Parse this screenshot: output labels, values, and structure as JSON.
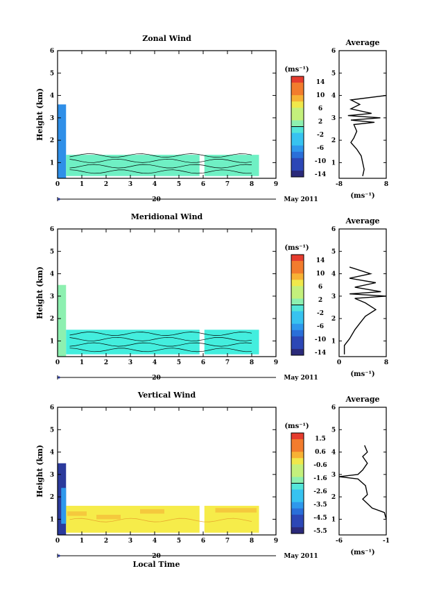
{
  "figure": {
    "date_label": "May 2011",
    "day_label": "20",
    "xlabel": "Local Time",
    "ylabel": "Height (km)",
    "colorbar_unit": "(ms⁻¹)",
    "profile_title": "Average",
    "profile_unit": "(ms⁻¹)"
  },
  "chart_data": [
    {
      "type": "heatmap",
      "title": "Zonal Wind",
      "xlabel": "",
      "ylabel": "Height (km)",
      "xlim": [
        0,
        9
      ],
      "ylim": [
        0.3,
        6
      ],
      "xticks": [
        "0",
        "1",
        "2",
        "3",
        "4",
        "5",
        "6",
        "7",
        "8",
        "9"
      ],
      "yticks": [
        "1",
        "2",
        "3",
        "4",
        "5",
        "6"
      ],
      "colorbar": {
        "ticks": [
          "14",
          "10",
          "6",
          "2",
          "-2",
          "-6",
          "-10",
          "-14"
        ],
        "range": [
          -16,
          16
        ]
      },
      "regions": [
        {
          "x": [
            0.0,
            0.35
          ],
          "y": [
            0.3,
            3.6
          ],
          "value": -6
        },
        {
          "x": [
            0.35,
            8.3
          ],
          "y": [
            0.4,
            1.35
          ],
          "value": 0
        }
      ],
      "profile": {
        "xlim": [
          -8,
          8
        ],
        "xticks": [
          "-8",
          "8"
        ],
        "yticks": [
          "1",
          "2",
          "3",
          "4",
          "5",
          "6"
        ],
        "heights": [
          0.4,
          0.7,
          1.0,
          1.3,
          1.6,
          1.9,
          2.1,
          2.4,
          2.7,
          2.8,
          2.9,
          3.0,
          3.1,
          3.2,
          3.4,
          3.6,
          3.8,
          4.0
        ],
        "values": [
          0,
          0.5,
          0,
          -0.5,
          -2,
          -4,
          -3,
          -2,
          -3,
          4,
          -4,
          6,
          -5,
          3,
          -4,
          -1,
          -4,
          8
        ]
      }
    },
    {
      "type": "heatmap",
      "title": "Meridional Wind",
      "xlabel": "",
      "ylabel": "Height (km)",
      "xlim": [
        0,
        9
      ],
      "ylim": [
        0.3,
        6
      ],
      "xticks": [
        "0",
        "1",
        "2",
        "3",
        "4",
        "5",
        "6",
        "7",
        "8",
        "9"
      ],
      "yticks": [
        "1",
        "2",
        "3",
        "4",
        "5",
        "6"
      ],
      "colorbar": {
        "ticks": [
          "14",
          "10",
          "6",
          "2",
          "-2",
          "-6",
          "-10",
          "-14"
        ],
        "range": [
          -16,
          16
        ]
      },
      "regions": [
        {
          "x": [
            0.0,
            0.35
          ],
          "y": [
            0.3,
            3.5
          ],
          "value": 4
        },
        {
          "x": [
            0.35,
            8.3
          ],
          "y": [
            0.4,
            1.5
          ],
          "value": 1
        }
      ],
      "profile": {
        "xlim": [
          -1,
          8
        ],
        "xticks": [
          "0",
          "8"
        ],
        "yticks": [
          "1",
          "2",
          "3",
          "4",
          "5",
          "6"
        ],
        "heights": [
          0.4,
          0.8,
          1.1,
          1.5,
          1.8,
          2.1,
          2.4,
          2.7,
          2.9,
          3.0,
          3.1,
          3.2,
          3.4,
          3.6,
          3.8,
          4.0,
          4.3
        ],
        "values": [
          0,
          0,
          1,
          2,
          3,
          4,
          6,
          4,
          2,
          8,
          1,
          7,
          2,
          6,
          1,
          5,
          1
        ]
      }
    },
    {
      "type": "heatmap",
      "title": "Vertical Wind",
      "xlabel": "Local Time",
      "ylabel": "Height (km)",
      "xlim": [
        0,
        9
      ],
      "ylim": [
        0.3,
        6
      ],
      "xticks": [
        "0",
        "1",
        "2",
        "3",
        "4",
        "5",
        "6",
        "7",
        "8",
        "9"
      ],
      "yticks": [
        "1",
        "2",
        "3",
        "4",
        "5",
        "6"
      ],
      "colorbar": {
        "ticks": [
          "1.5",
          "0.6",
          "-0.6",
          "-1.6",
          "-2.6",
          "-3.5",
          "-4.5",
          "-5.5"
        ],
        "range": [
          -6,
          2
        ]
      },
      "regions": [
        {
          "x": [
            0.0,
            0.35
          ],
          "y": [
            0.3,
            3.5
          ],
          "value": -5
        },
        {
          "x": [
            0.35,
            8.3
          ],
          "y": [
            0.4,
            1.6
          ],
          "value": -0.5
        }
      ],
      "profile": {
        "xlim": [
          -6,
          -1
        ],
        "xticks": [
          "-6",
          "-1"
        ],
        "yticks": [
          "1",
          "2",
          "3",
          "4",
          "5",
          "6"
        ],
        "heights": [
          1.0,
          1.3,
          1.5,
          1.7,
          1.9,
          2.1,
          2.5,
          2.8,
          2.9,
          3.0,
          3.2,
          3.5,
          3.8,
          4.0,
          4.3
        ],
        "values": [
          -1,
          -1.2,
          -2.5,
          -3,
          -3.5,
          -3,
          -3.2,
          -4,
          -6,
          -4,
          -3.5,
          -3,
          -3.5,
          -3,
          -3.3
        ]
      }
    }
  ],
  "colors": {
    "colorbar_stops": [
      "#2b2a7a",
      "#2c47b6",
      "#2a6fd9",
      "#2e98ec",
      "#37c3f0",
      "#53e6d9",
      "#8df0b0",
      "#c4f07c",
      "#f0e84b",
      "#f7b235",
      "#f27c2d",
      "#e53c2e"
    ],
    "zonal_fill": "#6ff0c4",
    "meridional_fill": "#43eede",
    "vertical_fill": "#f6ec4a",
    "vertical_shade": "#f5c93d",
    "left_strip_cool": "#2f8fe8",
    "left_strip_deep": "#2b3a9c"
  }
}
